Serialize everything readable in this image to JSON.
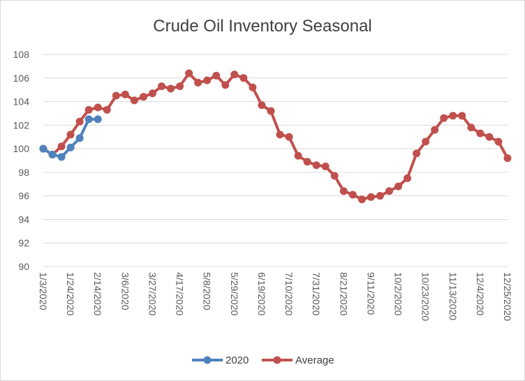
{
  "chart_data": {
    "type": "line",
    "title": "Crude Oil Inventory Seasonal",
    "xlabel": "",
    "ylabel": "",
    "ylim": [
      90,
      108
    ],
    "ytick_step": 2,
    "x_tick_labels": [
      "1/3/2020",
      "1/24/2020",
      "2/14/2020",
      "3/6/2020",
      "3/27/2020",
      "4/17/2020",
      "5/8/2020",
      "5/29/2020",
      "6/19/2020",
      "7/10/2020",
      "7/31/2020",
      "8/21/2020",
      "9/11/2020",
      "10/2/2020",
      "10/23/2020",
      "11/13/2020",
      "12/4/2020",
      "12/25/2020"
    ],
    "x_dates": [
      "1/3/2020",
      "1/10/2020",
      "1/17/2020",
      "1/24/2020",
      "1/31/2020",
      "2/7/2020",
      "2/14/2020",
      "2/21/2020",
      "2/28/2020",
      "3/6/2020",
      "3/13/2020",
      "3/20/2020",
      "3/27/2020",
      "4/3/2020",
      "4/10/2020",
      "4/17/2020",
      "4/24/2020",
      "5/1/2020",
      "5/8/2020",
      "5/15/2020",
      "5/22/2020",
      "5/29/2020",
      "6/5/2020",
      "6/12/2020",
      "6/19/2020",
      "6/26/2020",
      "7/3/2020",
      "7/10/2020",
      "7/17/2020",
      "7/24/2020",
      "7/31/2020",
      "8/7/2020",
      "8/14/2020",
      "8/21/2020",
      "8/28/2020",
      "9/4/2020",
      "9/11/2020",
      "9/18/2020",
      "9/25/2020",
      "10/2/2020",
      "10/9/2020",
      "10/16/2020",
      "10/23/2020",
      "10/30/2020",
      "11/6/2020",
      "11/13/2020",
      "11/20/2020",
      "11/27/2020",
      "12/4/2020",
      "12/11/2020",
      "12/18/2020",
      "12/25/2020"
    ],
    "series": [
      {
        "name": "2020",
        "color": "#4f81bd",
        "values": [
          100.0,
          99.5,
          99.3,
          100.1,
          100.9,
          102.5,
          102.5
        ]
      },
      {
        "name": "Average",
        "color": "#c0504d",
        "values": [
          100.0,
          99.5,
          100.2,
          101.2,
          102.3,
          103.3,
          103.5,
          103.3,
          104.5,
          104.6,
          104.1,
          104.4,
          104.7,
          105.3,
          105.1,
          105.3,
          106.4,
          105.6,
          105.8,
          106.2,
          105.4,
          106.3,
          106.0,
          105.2,
          103.7,
          103.2,
          101.2,
          101.0,
          99.4,
          98.9,
          98.6,
          98.5,
          97.7,
          96.4,
          96.1,
          95.7,
          95.9,
          96.0,
          96.4,
          96.8,
          97.5,
          99.6,
          100.6,
          101.6,
          102.6,
          102.8,
          102.8,
          101.8,
          101.3,
          101.0,
          100.6,
          99.2
        ]
      }
    ],
    "legend": {
      "position": "bottom",
      "entries": [
        "2020",
        "Average"
      ]
    },
    "grid": {
      "horizontal": true,
      "vertical": false,
      "color": "#d9d9d9"
    }
  }
}
